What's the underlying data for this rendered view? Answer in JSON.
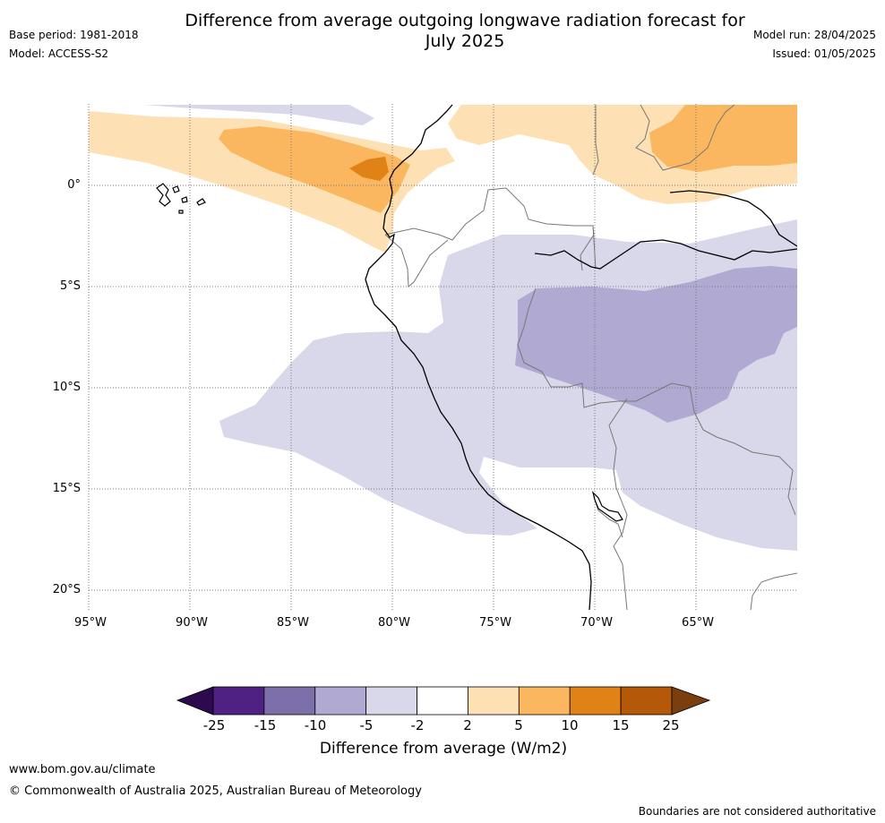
{
  "header": {
    "title_line1": "Difference from average outgoing longwave radiation forecast for",
    "title_line2": "July 2025",
    "base_period": "Base period: 1981-2018",
    "model": "Model: ACCESS-S2",
    "model_run": "Model run: 28/04/2025",
    "issued": "Issued: 01/05/2025"
  },
  "map": {
    "region": "Western South America",
    "lat_labels": [
      "0°",
      "5°S",
      "10°S",
      "15°S",
      "20°S"
    ],
    "lon_labels": [
      "95°W",
      "90°W",
      "85°W",
      "80°W",
      "75°W",
      "70°W",
      "65°W"
    ],
    "lat_values": [
      0,
      -5,
      -10,
      -15,
      -20
    ],
    "lon_values": [
      -95,
      -90,
      -85,
      -80,
      -75,
      -70,
      -65
    ],
    "extent": {
      "lon_min": -95,
      "lon_max": -60,
      "lat_min": -21,
      "lat_max": 4
    },
    "grid": true
  },
  "colorbar": {
    "title": "Difference from average (W/m2)",
    "ticks": [
      "-25",
      "-15",
      "-10",
      "-5",
      "-2",
      "2",
      "5",
      "10",
      "15",
      "25"
    ],
    "under_color": "#2d0a4e",
    "over_color": "#7a3e0f",
    "colors": [
      "#4f2183",
      "#7d6faa",
      "#b0a9d1",
      "#d8d8ea",
      "#ffffff",
      "#fde0b4",
      "#fbb75f",
      "#e08215",
      "#b45809"
    ]
  },
  "footer": {
    "website": "www.bom.gov.au/climate",
    "copyright": "© Commonwealth of Australia 2025, Australian Bureau of Meteorology",
    "disclaimer": "Boundaries are not considered authoritative"
  }
}
